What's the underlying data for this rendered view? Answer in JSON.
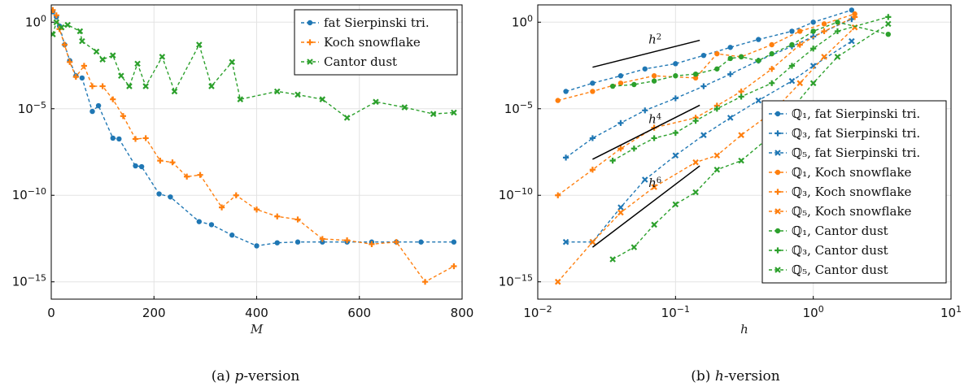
{
  "colors": {
    "blue": "#1f77b4",
    "orange": "#ff7f0e",
    "green": "#2ca02c",
    "grid": "#e3e3e3",
    "frame": "#000000",
    "guide": "#000000"
  },
  "captions": {
    "a": "(a) p-version",
    "b": "(b) h-version"
  },
  "chart_data": [
    {
      "type": "scatter",
      "subtitle": "(a) p-version",
      "xlabel": "M",
      "ylabel": "",
      "xscale": "linear",
      "yscale": "log",
      "xlim": [
        0,
        800
      ],
      "ylim": [
        1e-16,
        10
      ],
      "xticks": [
        0,
        200,
        400,
        600,
        800
      ],
      "xticklabels": [
        "0",
        "200",
        "400",
        "600",
        "800"
      ],
      "yticks": [
        1,
        1e-05,
        1e-10,
        1e-15
      ],
      "yticklabels": [
        "10⁰",
        "10⁻⁵",
        "10⁻¹⁰",
        "10⁻¹⁵"
      ],
      "grid": true,
      "legend_position": "top-right",
      "series": [
        {
          "name": "fat Sierpinski tri.",
          "color": "#1f77b4",
          "marker": "circle",
          "line": "dashed",
          "x": [
            3,
            10,
            16,
            26,
            36,
            48,
            60,
            80,
            92,
            120,
            132,
            164,
            176,
            210,
            232,
            288,
            312,
            352,
            400,
            440,
            480,
            528,
            576,
            624,
            672,
            720,
            784
          ],
          "y": [
            4,
            2,
            0.6,
            0.05,
            0.006,
            0.0008,
            0.0006,
            7e-06,
            1.5e-05,
            2e-07,
            1.8e-07,
            5e-09,
            4.5e-09,
            1.2e-10,
            8e-11,
            3e-12,
            2e-12,
            5e-13,
            1.2e-13,
            1.8e-13,
            2e-13,
            2e-13,
            2e-13,
            2e-13,
            2e-13,
            2e-13,
            2e-13
          ]
        },
        {
          "name": "Koch snowflake",
          "color": "#ff7f0e",
          "marker": "plus",
          "line": "dashed",
          "x": [
            3,
            10,
            16,
            26,
            36,
            48,
            64,
            80,
            100,
            120,
            140,
            164,
            184,
            212,
            236,
            264,
            290,
            332,
            360,
            400,
            440,
            480,
            528,
            576,
            624,
            672,
            728,
            784
          ],
          "y": [
            5,
            2.5,
            0.4,
            0.05,
            0.005,
            0.0007,
            0.003,
            0.0002,
            0.0002,
            3.5e-05,
            3.8e-06,
            1.8e-07,
            2e-07,
            1e-08,
            8e-09,
            1.2e-09,
            1.5e-09,
            2e-11,
            1e-10,
            1.5e-11,
            6e-12,
            4e-12,
            3e-13,
            2.5e-13,
            1.5e-13,
            2e-13,
            1e-15,
            8e-15
          ]
        },
        {
          "name": "Cantor dust",
          "color": "#2ca02c",
          "marker": "x",
          "line": "dashed",
          "x": [
            3,
            10,
            20,
            32,
            56,
            60,
            88,
            100,
            120,
            136,
            152,
            168,
            184,
            216,
            240,
            288,
            312,
            352,
            368,
            440,
            480,
            528,
            576,
            632,
            688,
            744,
            784
          ],
          "y": [
            0.2,
            1,
            0.5,
            0.7,
            0.3,
            0.08,
            0.02,
            0.007,
            0.012,
            0.0008,
            0.0002,
            0.004,
            0.0002,
            0.01,
            0.0001,
            0.05,
            0.0002,
            0.005,
            3.5e-05,
            0.0001,
            6.5e-05,
            3.5e-05,
            3e-06,
            2.5e-05,
            1.2e-05,
            5e-06,
            6e-06
          ]
        }
      ]
    },
    {
      "type": "scatter",
      "subtitle": "(b) h-version",
      "xlabel": "h",
      "ylabel": "",
      "xscale": "log",
      "yscale": "log",
      "xlim": [
        0.01,
        10
      ],
      "ylim": [
        1e-16,
        10
      ],
      "xticks": [
        0.01,
        0.1,
        1,
        10
      ],
      "xticklabels": [
        "10⁻²",
        "10⁻¹",
        "10⁰",
        "10¹"
      ],
      "yticks": [
        1,
        1e-05,
        1e-10,
        1e-15
      ],
      "yticklabels": [
        "10⁰",
        "10⁻⁵",
        "10⁻¹⁰",
        "10⁻¹⁵"
      ],
      "grid": true,
      "legend_position": "right",
      "annotations": [
        {
          "text": "h",
          "exponent": "2",
          "x": 0.071,
          "y": 0.06,
          "slope": 2,
          "line_x": [
            0.025,
            0.15
          ],
          "line_y": [
            0.0025,
            0.09
          ]
        },
        {
          "text": "h",
          "exponent": "4",
          "x": 0.071,
          "y": 1.5e-06,
          "slope": 4,
          "line_x": [
            0.025,
            0.15
          ],
          "line_y": [
            1.2e-08,
            1.6e-05
          ]
        },
        {
          "text": "h",
          "exponent": "6",
          "x": 0.071,
          "y": 3e-10,
          "slope": 6,
          "line_x": [
            0.025,
            0.15
          ],
          "line_y": [
            1e-13,
            5e-09
          ]
        }
      ],
      "series": [
        {
          "name": "ℚ₁, fat Sierpinski tri.",
          "color": "#1f77b4",
          "marker": "circle",
          "line": "dashed",
          "x": [
            0.016,
            0.025,
            0.04,
            0.06,
            0.1,
            0.16,
            0.25,
            0.4,
            0.7,
            1.0,
            1.9
          ],
          "y": [
            0.0001,
            0.0003,
            0.0008,
            0.002,
            0.004,
            0.012,
            0.035,
            0.1,
            0.3,
            1,
            5
          ]
        },
        {
          "name": "ℚ₃, fat Sierpinski tri.",
          "color": "#1f77b4",
          "marker": "plus",
          "line": "dashed",
          "x": [
            0.016,
            0.025,
            0.04,
            0.06,
            0.1,
            0.16,
            0.25,
            0.4,
            0.7,
            1.0,
            1.9
          ],
          "y": [
            1.5e-08,
            2e-07,
            1.5e-06,
            8e-06,
            4e-05,
            0.0002,
            0.001,
            0.006,
            0.04,
            0.15,
            1.5
          ]
        },
        {
          "name": "ℚ₅, fat Sierpinski tri.",
          "color": "#1f77b4",
          "marker": "x",
          "line": "dashed",
          "x": [
            0.016,
            0.025,
            0.04,
            0.06,
            0.1,
            0.16,
            0.25,
            0.4,
            0.7,
            1.0,
            1.9
          ],
          "y": [
            2e-13,
            2e-13,
            2e-11,
            8e-10,
            2e-08,
            3e-07,
            3e-06,
            3e-05,
            0.0004,
            0.003,
            0.08
          ]
        },
        {
          "name": "ℚ₁, Koch snowflake",
          "color": "#ff7f0e",
          "marker": "circle",
          "line": "dashed",
          "x": [
            0.014,
            0.025,
            0.04,
            0.07,
            0.14,
            0.2,
            0.3,
            0.5,
            0.8,
            1.2,
            2
          ],
          "y": [
            3e-05,
            0.0001,
            0.0003,
            0.0008,
            0.0006,
            0.015,
            0.01,
            0.05,
            0.3,
            0.8,
            3
          ]
        },
        {
          "name": "ℚ₃, Koch snowflake",
          "color": "#ff7f0e",
          "marker": "plus",
          "line": "dashed",
          "x": [
            0.014,
            0.025,
            0.04,
            0.07,
            0.14,
            0.2,
            0.3,
            0.5,
            0.8,
            1.2,
            2
          ],
          "y": [
            1e-10,
            3e-09,
            5e-08,
            8e-07,
            3e-06,
            1.5e-05,
            0.0001,
            0.002,
            0.05,
            0.3,
            2
          ]
        },
        {
          "name": "ℚ₅, Koch snowflake",
          "color": "#ff7f0e",
          "marker": "x",
          "line": "dashed",
          "x": [
            0.014,
            0.025,
            0.04,
            0.07,
            0.14,
            0.2,
            0.3,
            0.5,
            0.8,
            1.2,
            2
          ],
          "y": [
            1e-15,
            2e-13,
            1e-11,
            3e-10,
            8e-09,
            2e-08,
            3e-07,
            6e-06,
            0.0003,
            0.01,
            0.5
          ]
        },
        {
          "name": "ℚ₁, Cantor dust",
          "color": "#2ca02c",
          "marker": "circle",
          "line": "dashed",
          "x": [
            0.035,
            0.05,
            0.07,
            0.1,
            0.14,
            0.2,
            0.25,
            0.3,
            0.4,
            0.5,
            0.7,
            1.0,
            1.5,
            3.5
          ],
          "y": [
            0.0002,
            0.00025,
            0.0004,
            0.0008,
            0.001,
            0.002,
            0.008,
            0.01,
            0.006,
            0.015,
            0.05,
            0.3,
            1,
            0.2
          ]
        },
        {
          "name": "ℚ₃, Cantor dust",
          "color": "#2ca02c",
          "marker": "plus",
          "line": "dashed",
          "x": [
            0.035,
            0.05,
            0.07,
            0.1,
            0.14,
            0.2,
            0.3,
            0.5,
            0.7,
            1.0,
            1.5,
            3.5
          ],
          "y": [
            1e-08,
            5e-08,
            2e-07,
            4e-07,
            2e-06,
            1e-05,
            5e-05,
            0.0003,
            0.003,
            0.03,
            0.3,
            2
          ]
        },
        {
          "name": "ℚ₅, Cantor dust",
          "color": "#2ca02c",
          "marker": "x",
          "line": "dashed",
          "x": [
            0.035,
            0.05,
            0.07,
            0.1,
            0.14,
            0.2,
            0.3,
            0.5,
            0.7,
            1.0,
            1.5,
            3.5
          ],
          "y": [
            2e-14,
            1e-13,
            2e-12,
            3e-11,
            1.5e-10,
            3e-09,
            1e-08,
            3e-07,
            1e-05,
            0.0003,
            0.01,
            0.8
          ]
        }
      ]
    }
  ]
}
